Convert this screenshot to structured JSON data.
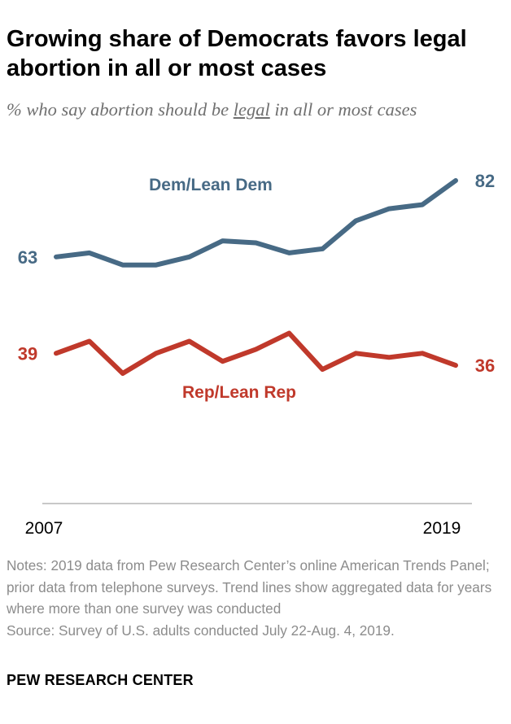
{
  "header": {
    "title": "Growing share of Democrats favors legal abortion in all or most cases",
    "subtitle_before": "% who say abortion should be ",
    "subtitle_underlined": "legal",
    "subtitle_after": " in all or most cases"
  },
  "chart_data": {
    "type": "line",
    "x": [
      2007,
      2008,
      2009,
      2010,
      2011,
      2012,
      2013,
      2014,
      2015,
      2016,
      2017,
      2018,
      2019
    ],
    "x_tick_labels": [
      "2007",
      "2019"
    ],
    "ylim": [
      30,
      90
    ],
    "grid": false,
    "legend": "inline labels on lines",
    "series": [
      {
        "name": "Dem/Lean Dem",
        "color": "#476a85",
        "values": [
          63,
          64,
          61,
          61,
          63,
          67,
          66.5,
          64,
          65,
          72,
          75,
          76,
          82
        ],
        "start_label": "63",
        "end_label": "82"
      },
      {
        "name": "Rep/Lean Rep",
        "color": "#c0392b",
        "values": [
          39,
          42,
          34,
          39,
          42,
          37,
          40,
          44,
          35,
          39,
          38,
          39,
          36
        ],
        "start_label": "39",
        "end_label": "36"
      }
    ]
  },
  "footer": {
    "notes": "Notes: 2019 data from Pew Research Center’s online American Trends Panel; prior data from telephone surveys. Trend lines show aggregated data for years where more than one survey was conducted",
    "source": "Source: Survey of U.S. adults conducted July 22-Aug. 4, 2019.",
    "brand": "PEW RESEARCH CENTER"
  }
}
